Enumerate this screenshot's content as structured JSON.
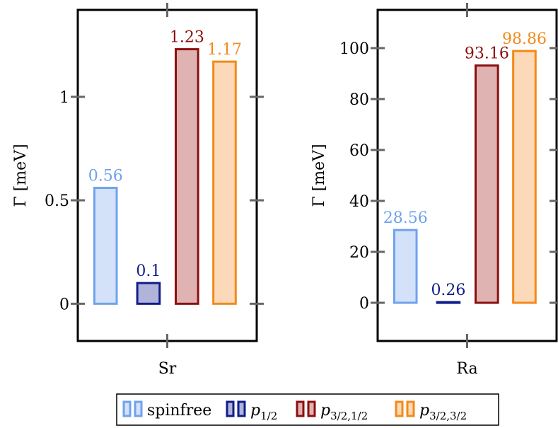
{
  "chart_data": [
    {
      "type": "bar",
      "xlabel": "Sr",
      "ylabel": "Γ [meV]",
      "ylim": [
        -0.18,
        1.42
      ],
      "yticks": [
        "0",
        "0.5",
        "1"
      ],
      "ytick_values": [
        0,
        0.5,
        1
      ],
      "grid": false,
      "series": [
        {
          "name": "spinfree",
          "value": 0.56,
          "label": "0.56",
          "color": "#6fa2ee",
          "fill": "#d3e2f8"
        },
        {
          "name": "p",
          "name_sub": "1/2",
          "value": 0.1,
          "label": "0.1",
          "color": "#0f1d8a",
          "fill": "#b2b3d8"
        },
        {
          "name": "p",
          "name_sub": "3/2,1/2",
          "value": 1.23,
          "label": "1.23",
          "color": "#8b0f0f",
          "fill": "#e0b3b3"
        },
        {
          "name": "p",
          "name_sub": "3/2,3/2",
          "value": 1.17,
          "label": "1.17",
          "color": "#f28a1a",
          "fill": "#fcd9b8"
        }
      ]
    },
    {
      "type": "bar",
      "xlabel": "Ra",
      "ylabel": "Γ [meV]",
      "ylim": [
        -15,
        115
      ],
      "yticks": [
        "0",
        "20",
        "40",
        "60",
        "80",
        "100"
      ],
      "ytick_values": [
        0,
        20,
        40,
        60,
        80,
        100
      ],
      "grid": false,
      "series": [
        {
          "name": "spinfree",
          "value": 28.56,
          "label": "28.56",
          "color": "#6fa2ee",
          "fill": "#d3e2f8"
        },
        {
          "name": "p",
          "name_sub": "1/2",
          "value": 0.26,
          "label": "0.26",
          "color": "#0f1d8a",
          "fill": "#b2b3d8"
        },
        {
          "name": "p",
          "name_sub": "3/2,1/2",
          "value": 93.16,
          "label": "93.16",
          "color": "#8b0f0f",
          "fill": "#e0b3b3"
        },
        {
          "name": "p",
          "name_sub": "3/2,3/2",
          "value": 98.86,
          "label": "98.86",
          "color": "#f28a1a",
          "fill": "#fcd9b8"
        }
      ]
    }
  ],
  "legend": {
    "placement": "bottom-center",
    "entries": [
      {
        "text": "spinfree",
        "sub": ""
      },
      {
        "text": "p",
        "sub": "1/2"
      },
      {
        "text": "p",
        "sub": "3/2,1/2"
      },
      {
        "text": "p",
        "sub": "3/2,3/2"
      }
    ]
  }
}
